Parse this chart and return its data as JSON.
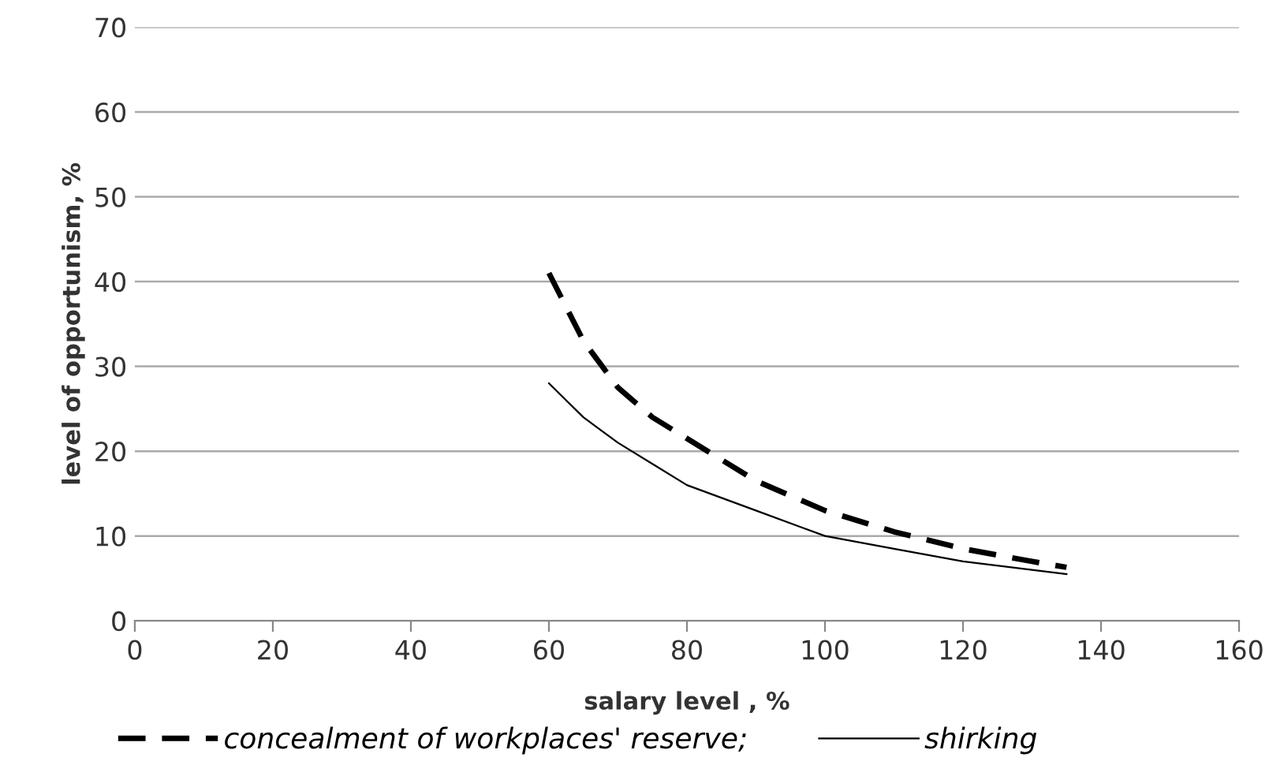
{
  "chart_data": {
    "type": "line",
    "xlabel": "salary level , %",
    "ylabel": "level of opportunism, %",
    "xlim": [
      0,
      160
    ],
    "xticks": [
      0,
      20,
      40,
      60,
      80,
      100,
      120,
      140,
      160
    ],
    "ylim": [
      0,
      70
    ],
    "yticks": [
      0,
      10,
      20,
      30,
      40,
      50,
      60,
      70
    ],
    "grid": "y",
    "legend": "bottom",
    "series": [
      {
        "name": "concealment of workplaces' reserve;",
        "color": "#000000",
        "line_style": "dashed",
        "x": [
          60,
          62.5,
          65,
          70,
          75,
          80,
          90,
          100,
          110,
          120,
          130,
          135
        ],
        "values": [
          41,
          37,
          33,
          27.5,
          24,
          21.5,
          16.5,
          13,
          10.5,
          8.5,
          7,
          6.3
        ]
      },
      {
        "name": "shirking",
        "color": "#000000",
        "line_style": "solid",
        "x": [
          60,
          65,
          70,
          75,
          80,
          90,
          100,
          110,
          120,
          130,
          135
        ],
        "values": [
          28,
          24,
          21,
          18.5,
          16,
          13,
          10,
          8.5,
          7,
          6,
          5.5
        ]
      }
    ]
  }
}
